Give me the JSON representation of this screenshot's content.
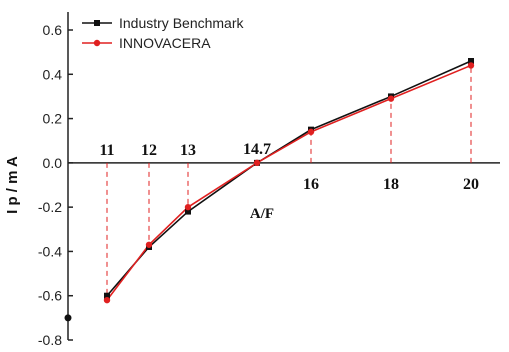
{
  "chart_data": {
    "type": "line",
    "xlabel": "A/F",
    "ylabel": "I p / m A",
    "ylim": [
      -0.8,
      0.6
    ],
    "y_ticks": [
      "0.6",
      "0.4",
      "0.2",
      "0.0",
      "-0.2",
      "-0.4",
      "-0.6",
      "-0.8"
    ],
    "x": [
      11,
      12,
      13,
      14.7,
      16,
      18,
      20
    ],
    "x_tick_labels": [
      "11",
      "12",
      "13",
      "14.7",
      "16",
      "18",
      "20"
    ],
    "series": [
      {
        "name": "Industry Benchmark",
        "color": "#111111",
        "marker": "square",
        "values": [
          -0.6,
          -0.38,
          -0.22,
          0.0,
          0.15,
          0.3,
          0.46
        ]
      },
      {
        "name": "INNOVACERA",
        "color": "#e02020",
        "marker": "circle",
        "values": [
          -0.62,
          -0.37,
          -0.2,
          0.0,
          0.14,
          0.29,
          0.44
        ]
      }
    ],
    "extra_point": {
      "y": -0.7,
      "color": "#111111"
    },
    "legend_position": "top-left",
    "grid": false,
    "drop_lines": {
      "style": "dashed",
      "color": "#e02020"
    }
  }
}
